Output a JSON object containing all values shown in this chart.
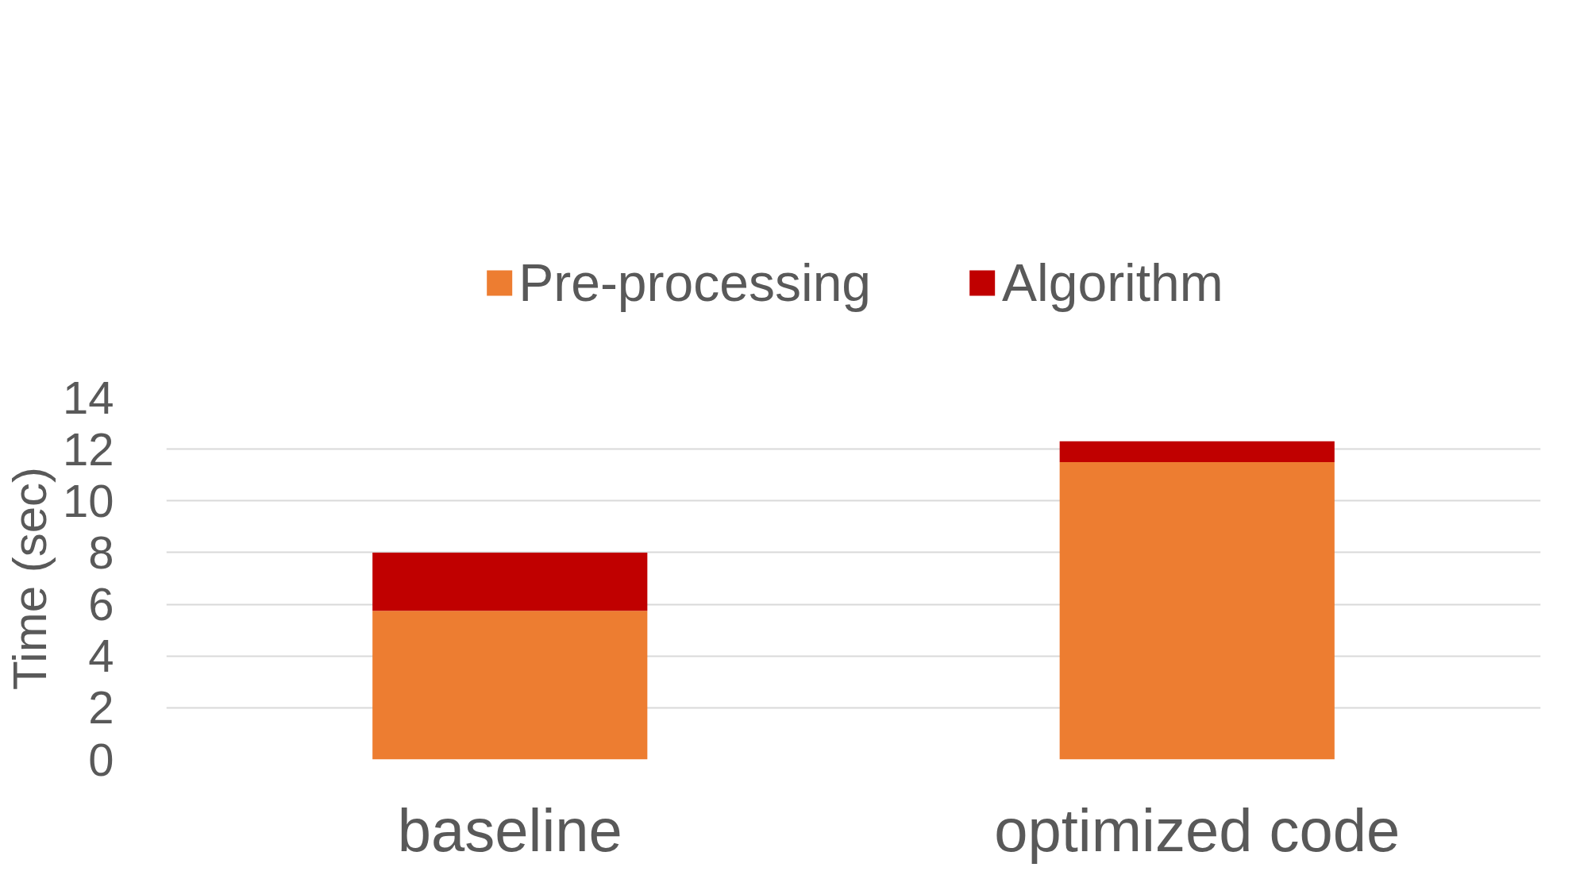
{
  "chart_data": {
    "type": "bar",
    "stacked": true,
    "ylabel": "Time (sec)",
    "categories": [
      "baseline",
      "optimized code"
    ],
    "series": [
      {
        "name": "Pre-processing",
        "color": "#ed7d31",
        "values": [
          5.75,
          11.5
        ]
      },
      {
        "name": "Algorithm",
        "color": "#c00000",
        "values": [
          2.25,
          0.8
        ]
      }
    ],
    "ylim": [
      0,
      14
    ],
    "yticks": [
      0,
      2,
      4,
      6,
      8,
      10,
      12,
      14
    ],
    "grid": "y",
    "legend": "top"
  }
}
